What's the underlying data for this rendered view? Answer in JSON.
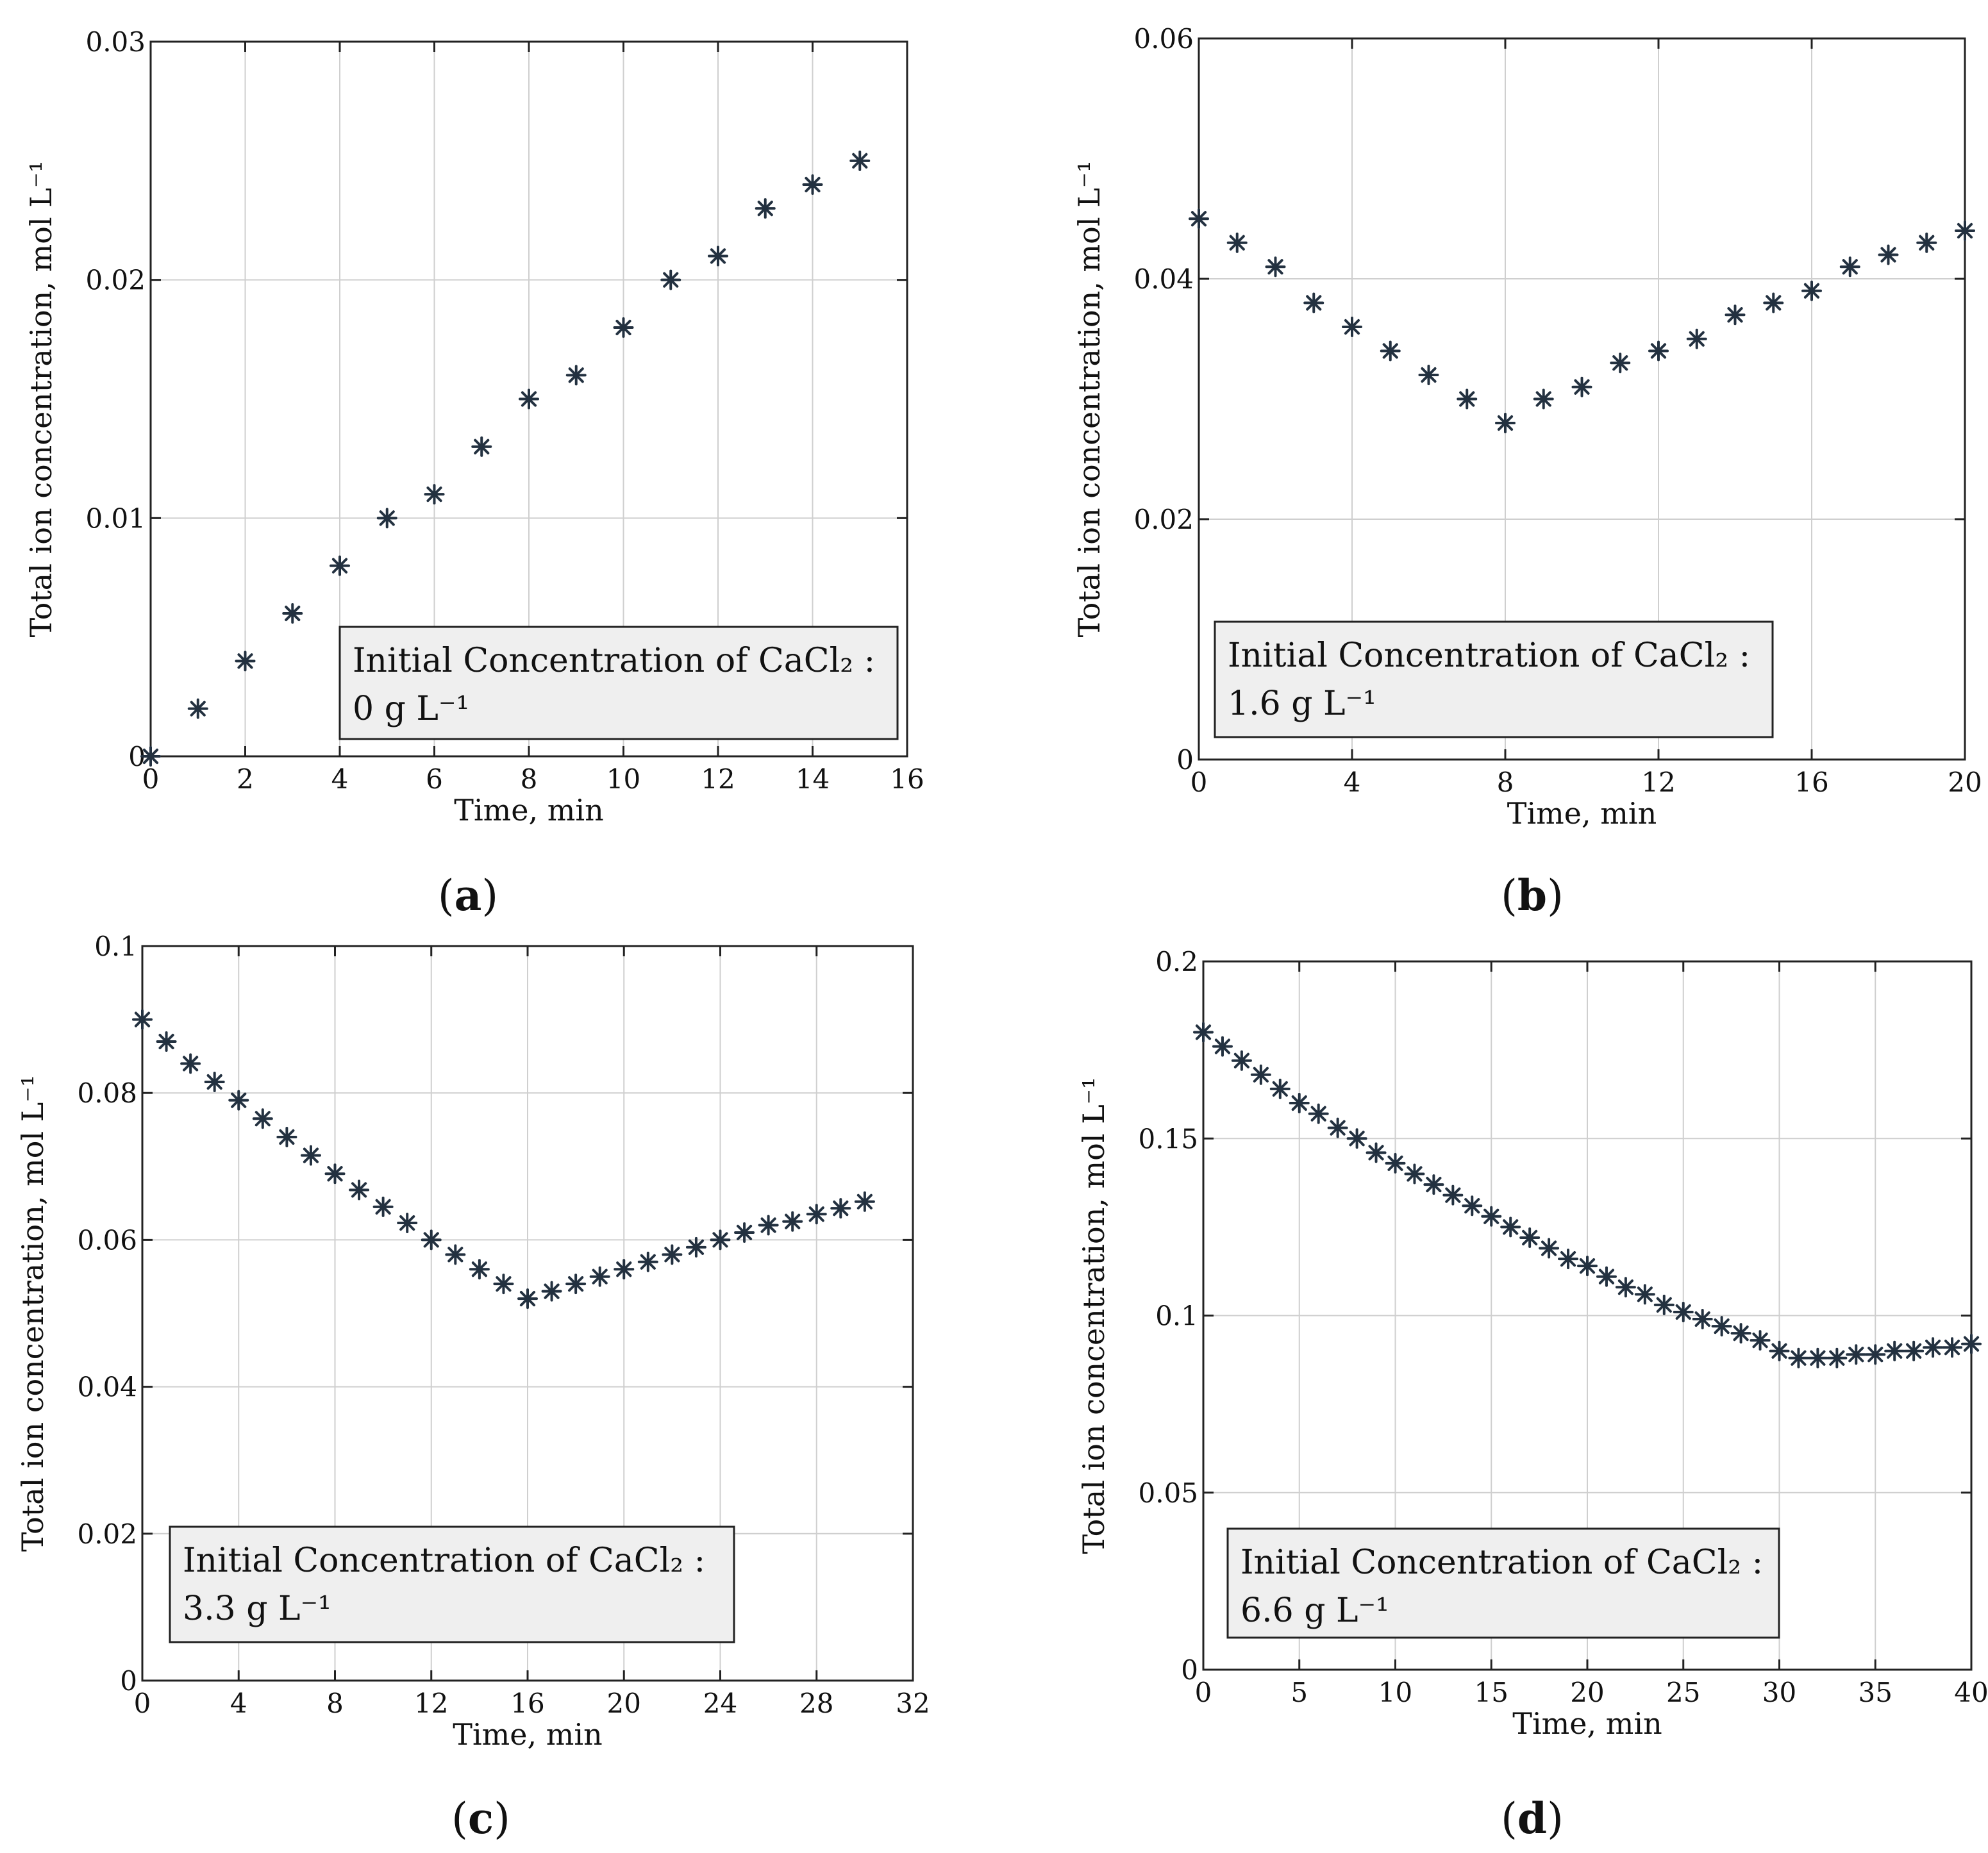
{
  "chart_data": [
    {
      "type": "scatter",
      "panel_label": "a",
      "caption": [
        "(",
        "a",
        ")"
      ],
      "xlabel": "Time, min",
      "ylabel": "Total ion concentration, mol L⁻¹",
      "xlim": [
        0,
        16
      ],
      "ylim": [
        0,
        0.03
      ],
      "xticks": [
        0,
        2,
        4,
        6,
        8,
        10,
        12,
        14,
        16
      ],
      "yticks": [
        0,
        0.01,
        0.02,
        0.03
      ],
      "xtick_labels": [
        "0",
        "2",
        "4",
        "6",
        "8",
        "10",
        "12",
        "14",
        "16"
      ],
      "ytick_labels": [
        "0",
        "0.01",
        "0.02",
        "0.03"
      ],
      "legend": [
        "Initial Concentration of CaCl₂ :",
        "0 g L⁻¹"
      ],
      "legend_position": "bottom-right",
      "grid": true,
      "marker_color": "#233140",
      "series": [
        {
          "name": "Total ion concentration",
          "x": [
            0,
            1,
            2,
            3,
            4,
            5,
            6,
            7,
            8,
            9,
            10,
            11,
            12,
            13,
            14,
            15
          ],
          "y": [
            0,
            0.002,
            0.004,
            0.006,
            0.008,
            0.01,
            0.011,
            0.013,
            0.015,
            0.016,
            0.018,
            0.02,
            0.021,
            0.023,
            0.024,
            0.025
          ]
        }
      ]
    },
    {
      "type": "scatter",
      "panel_label": "b",
      "caption": [
        "(",
        "b",
        ")"
      ],
      "xlabel": "Time, min",
      "ylabel": "Total ion concentration, mol L⁻¹",
      "xlim": [
        0,
        20
      ],
      "ylim": [
        0,
        0.06
      ],
      "xticks": [
        0,
        4,
        8,
        12,
        16,
        20
      ],
      "yticks": [
        0,
        0.02,
        0.04,
        0.06
      ],
      "xtick_labels": [
        "0",
        "4",
        "8",
        "12",
        "16",
        "20"
      ],
      "ytick_labels": [
        "0",
        "0.02",
        "0.04",
        "0.06"
      ],
      "legend": [
        "Initial Concentration of CaCl₂ :",
        "1.6 g L⁻¹"
      ],
      "legend_position": "bottom-left",
      "grid": true,
      "marker_color": "#233140",
      "series": [
        {
          "name": "Total ion concentration",
          "x": [
            0,
            1,
            2,
            3,
            4,
            5,
            6,
            7,
            8,
            9,
            10,
            11,
            12,
            13,
            14,
            15,
            16,
            17,
            18,
            19,
            20
          ],
          "y": [
            0.045,
            0.043,
            0.041,
            0.038,
            0.036,
            0.034,
            0.032,
            0.03,
            0.028,
            0.03,
            0.031,
            0.033,
            0.034,
            0.035,
            0.037,
            0.038,
            0.039,
            0.041,
            0.042,
            0.043,
            0.044
          ]
        }
      ]
    },
    {
      "type": "scatter",
      "panel_label": "c",
      "caption": [
        "(",
        "c",
        ")"
      ],
      "xlabel": "Time, min",
      "ylabel": "Total ion concentration, mol L⁻¹",
      "xlim": [
        0,
        32
      ],
      "ylim": [
        0,
        0.1
      ],
      "xticks": [
        0,
        4,
        8,
        12,
        16,
        20,
        24,
        28,
        32
      ],
      "yticks": [
        0,
        0.02,
        0.04,
        0.06,
        0.08,
        0.1
      ],
      "xtick_labels": [
        "0",
        "4",
        "8",
        "12",
        "16",
        "20",
        "24",
        "28",
        "32"
      ],
      "ytick_labels": [
        "0",
        "0.02",
        "0.04",
        "0.06",
        "0.08",
        "0.1"
      ],
      "legend": [
        "Initial Concentration of CaCl₂ :",
        "3.3 g L⁻¹"
      ],
      "legend_position": "bottom-left",
      "grid": true,
      "marker_color": "#233140",
      "series": [
        {
          "name": "Total ion concentration",
          "x": [
            0,
            1,
            2,
            3,
            4,
            5,
            6,
            7,
            8,
            9,
            10,
            11,
            12,
            13,
            14,
            15,
            16,
            17,
            18,
            19,
            20,
            21,
            22,
            23,
            24,
            25,
            26,
            27,
            28,
            29,
            30
          ],
          "y": [
            0.09,
            0.087,
            0.084,
            0.0815,
            0.079,
            0.0765,
            0.074,
            0.0715,
            0.069,
            0.0668,
            0.0645,
            0.0623,
            0.06,
            0.058,
            0.056,
            0.054,
            0.052,
            0.053,
            0.054,
            0.055,
            0.056,
            0.057,
            0.058,
            0.059,
            0.06,
            0.061,
            0.062,
            0.0625,
            0.0635,
            0.0643,
            0.0652
          ]
        }
      ]
    },
    {
      "type": "scatter",
      "panel_label": "d",
      "caption": [
        "(",
        "d",
        ")"
      ],
      "xlabel": "Time, min",
      "ylabel": "Total ion concentration, mol L⁻¹",
      "xlim": [
        0,
        40
      ],
      "ylim": [
        0,
        0.2
      ],
      "xticks": [
        0,
        5,
        10,
        15,
        20,
        25,
        30,
        35,
        40
      ],
      "yticks": [
        0,
        0.05,
        0.1,
        0.15,
        0.2
      ],
      "xtick_labels": [
        "0",
        "5",
        "10",
        "15",
        "20",
        "25",
        "30",
        "35",
        "40"
      ],
      "ytick_labels": [
        "0",
        "0.05",
        "0.1",
        "0.15",
        "0.2"
      ],
      "legend": [
        "Initial Concentration of CaCl₂ :",
        "6.6 g L⁻¹"
      ],
      "legend_position": "bottom-left",
      "grid": true,
      "marker_color": "#233140",
      "series": [
        {
          "name": "Total ion concentration",
          "x": [
            0,
            1,
            2,
            3,
            4,
            5,
            6,
            7,
            8,
            9,
            10,
            11,
            12,
            13,
            14,
            15,
            16,
            17,
            18,
            19,
            20,
            21,
            22,
            23,
            24,
            25,
            26,
            27,
            28,
            29,
            30,
            31,
            32,
            33,
            34,
            35,
            36,
            37,
            38,
            39,
            40
          ],
          "y": [
            0.18,
            0.176,
            0.172,
            0.168,
            0.164,
            0.16,
            0.157,
            0.153,
            0.15,
            0.146,
            0.143,
            0.14,
            0.137,
            0.134,
            0.131,
            0.128,
            0.125,
            0.122,
            0.119,
            0.116,
            0.114,
            0.111,
            0.108,
            0.106,
            0.103,
            0.101,
            0.099,
            0.097,
            0.095,
            0.093,
            0.09,
            0.088,
            0.088,
            0.088,
            0.089,
            0.089,
            0.09,
            0.09,
            0.091,
            0.091,
            0.092
          ]
        }
      ]
    }
  ]
}
